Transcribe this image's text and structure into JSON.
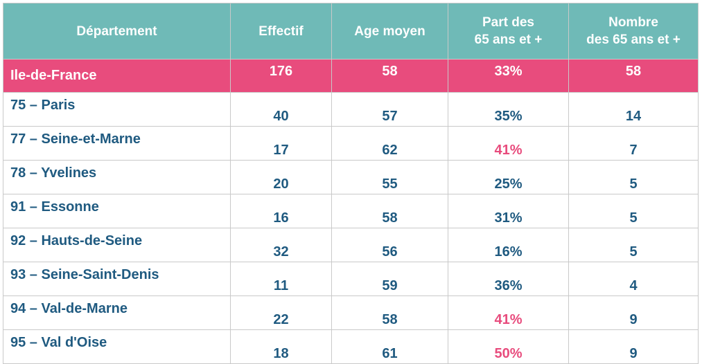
{
  "table": {
    "headers": [
      "Département",
      "Effectif",
      "Age moyen",
      "Part des\n65 ans et +",
      "Nombre\ndes 65 ans et +"
    ],
    "region": {
      "name": "Ile-de-France",
      "effectif": "176",
      "age": "58",
      "part": "33%",
      "nombre": "58"
    },
    "rows": [
      {
        "name": "75 – Paris",
        "effectif": "40",
        "age": "57",
        "part": "35%",
        "nombre": "14"
      },
      {
        "name": "77 – Seine-et-Marne",
        "effectif": "17",
        "age": "62",
        "part": "41%",
        "nombre": "7"
      },
      {
        "name": "78 – Yvelines",
        "effectif": "20",
        "age": "55",
        "part": "25%",
        "nombre": "5"
      },
      {
        "name": "91 – Essonne",
        "effectif": "16",
        "age": "58",
        "part": "31%",
        "nombre": "5"
      },
      {
        "name": "92 – Hauts-de-Seine",
        "effectif": "32",
        "age": "56",
        "part": "16%",
        "nombre": "5"
      },
      {
        "name": "93 – Seine-Saint-Denis",
        "effectif": "11",
        "age": "59",
        "part": "36%",
        "nombre": "4"
      },
      {
        "name": "94 – Val-de-Marne",
        "effectif": "22",
        "age": "58",
        "part": "41%",
        "nombre": "9"
      },
      {
        "name": "95 – Val d'Oise",
        "effectif": "18",
        "age": "61",
        "part": "50%",
        "nombre": "9"
      }
    ],
    "highlighted_part_values": [
      "41%",
      "50%"
    ]
  },
  "colors": {
    "header_bg": "#6fbab7",
    "region_bg": "#e84c7d",
    "text_blue": "#1f5a80",
    "highlight_pink": "#e84c7d"
  }
}
